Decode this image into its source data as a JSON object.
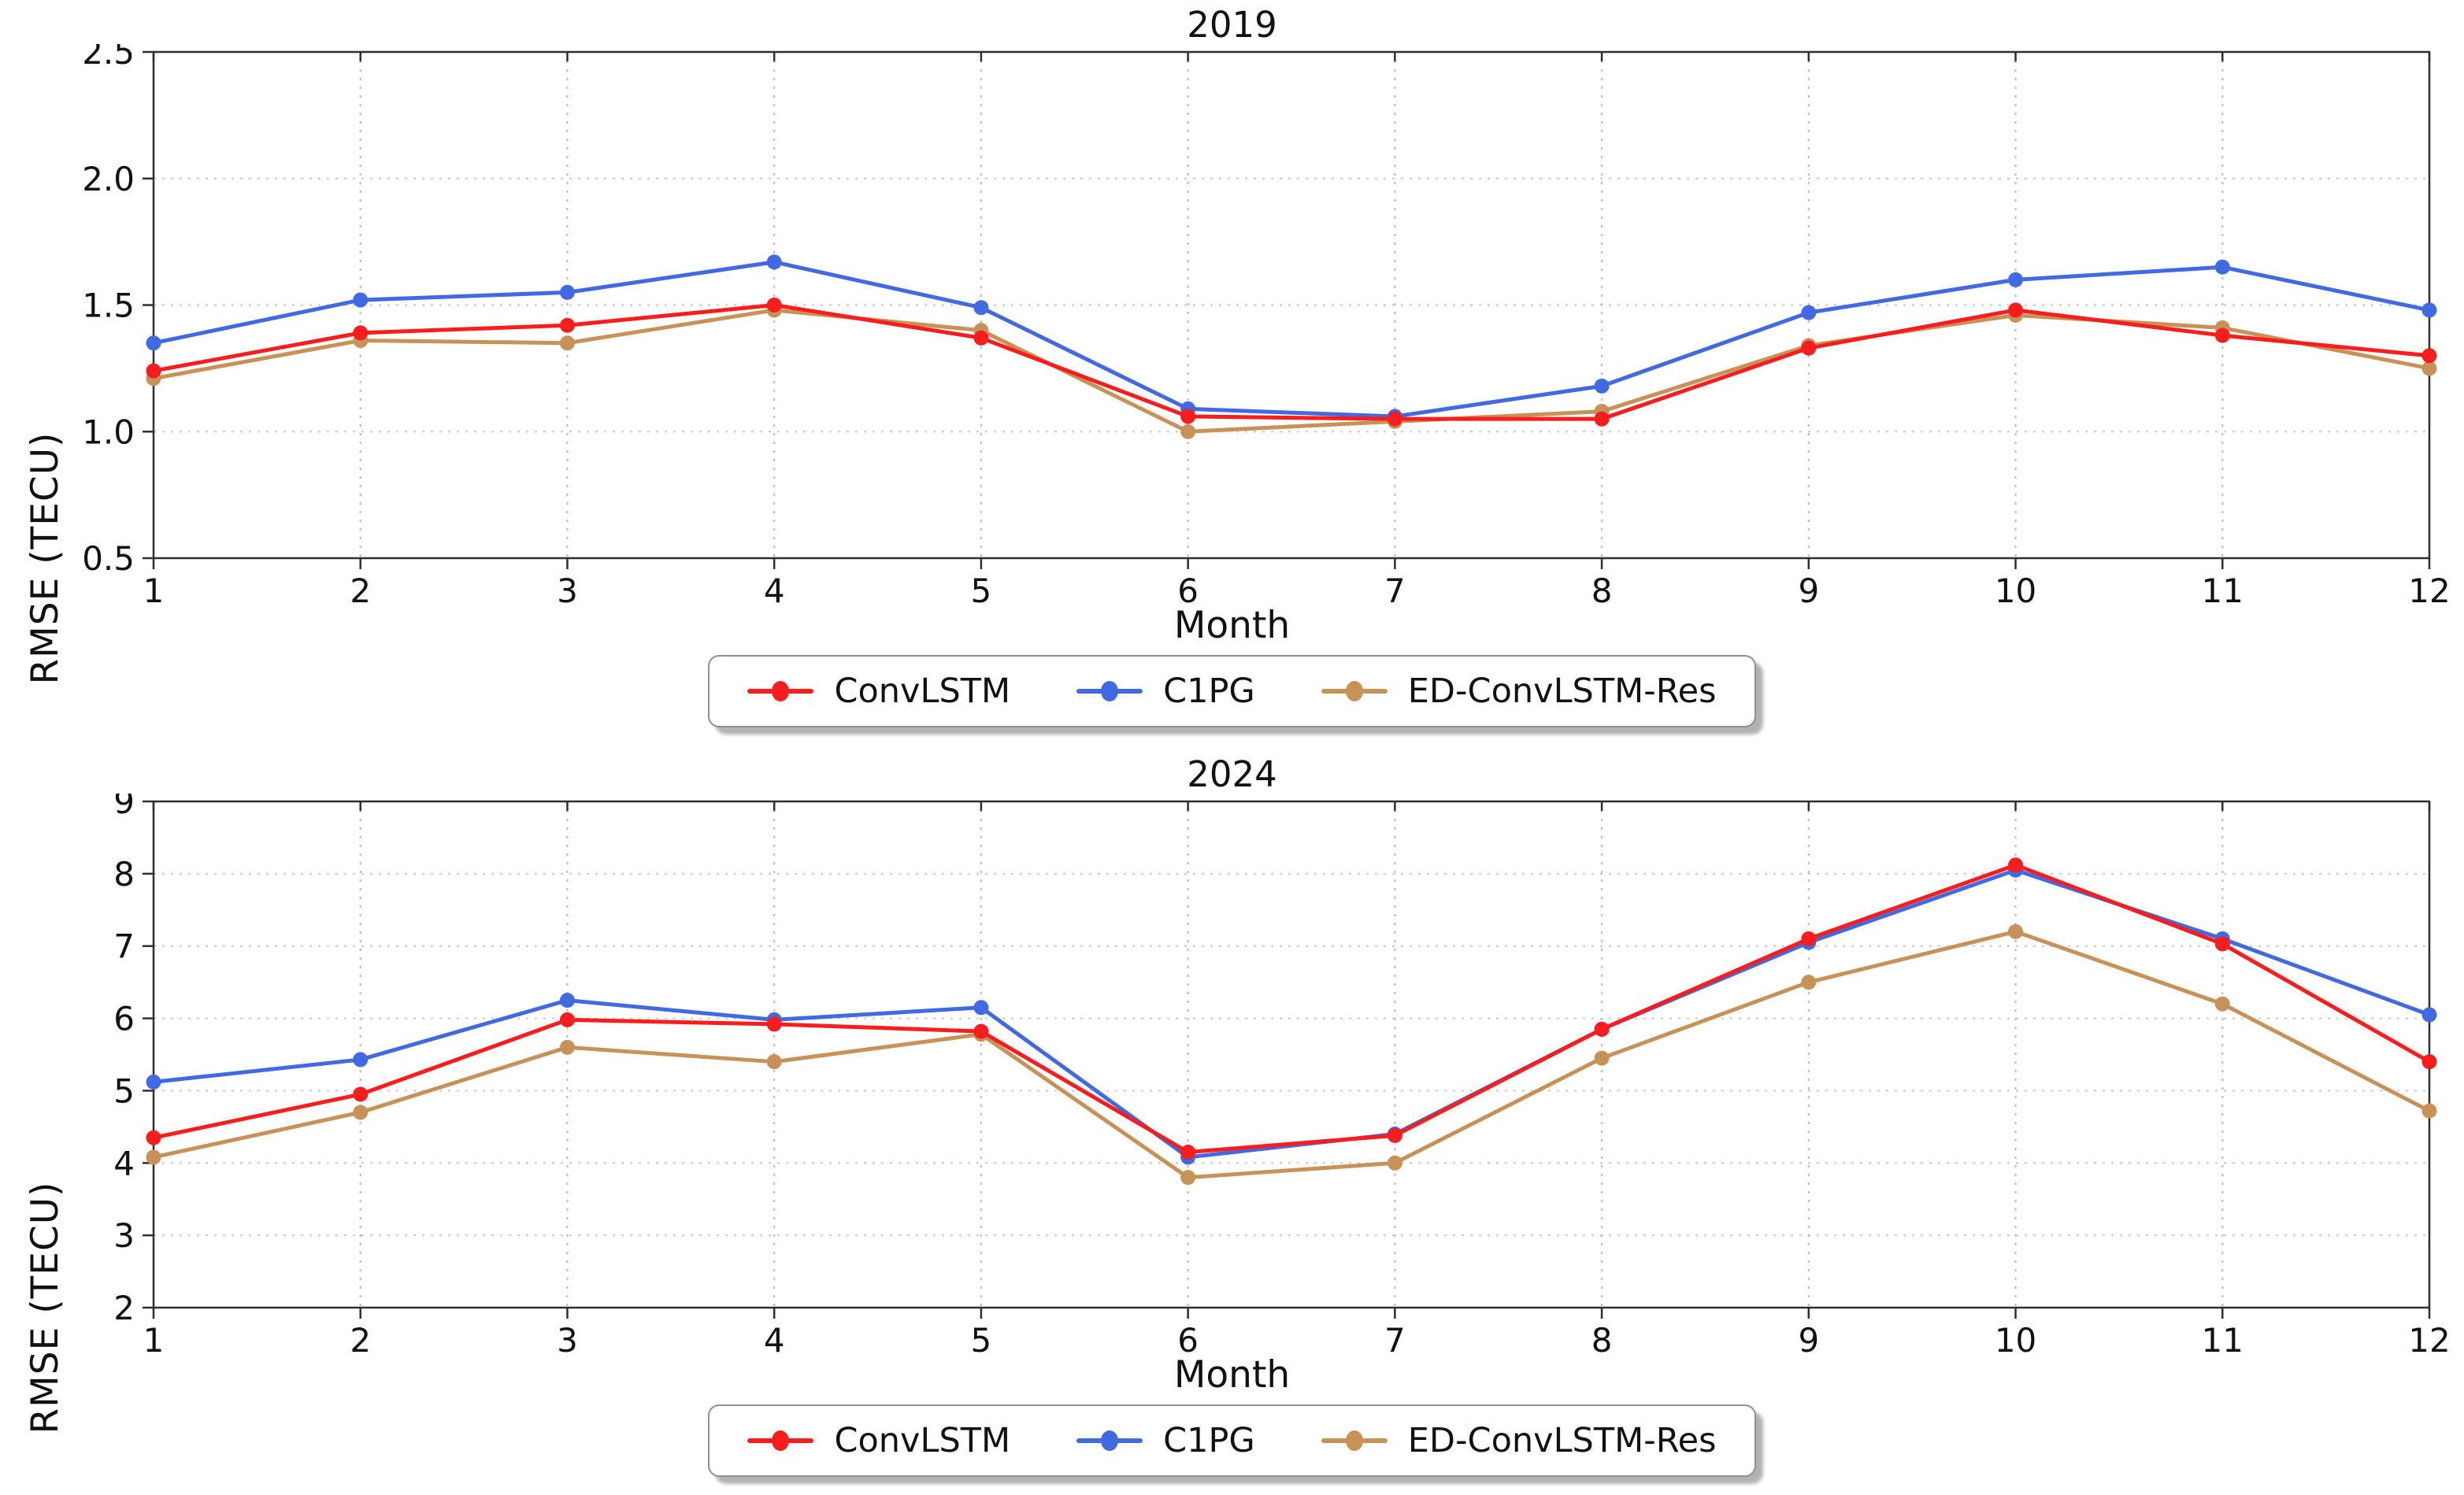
{
  "figure": {
    "background": "#ffffff",
    "text_color": "#111111",
    "grid_color_horizontal": "#cccccc",
    "grid_color_vertical": "#bdbdbd",
    "spine_color": "#2f2f2f"
  },
  "chart_data": [
    {
      "type": "line",
      "title": "2019",
      "xlabel": "Month",
      "ylabel": "RMSE (TECU)",
      "x": [
        1,
        2,
        3,
        4,
        5,
        6,
        7,
        8,
        9,
        10,
        11,
        12
      ],
      "xlim": [
        1,
        12
      ],
      "ylim": [
        0.5,
        2.5
      ],
      "xticks": [
        "1",
        "2",
        "3",
        "4",
        "5",
        "6",
        "7",
        "8",
        "9",
        "10",
        "11",
        "12"
      ],
      "yticks": [
        "0.5",
        "1.0",
        "1.5",
        "2.0",
        "2.5"
      ],
      "grid": true,
      "legend_position": "below",
      "series": [
        {
          "name": "ConvLSTM",
          "color": "#f91d1d",
          "values": [
            1.24,
            1.39,
            1.42,
            1.5,
            1.37,
            1.06,
            1.05,
            1.05,
            1.33,
            1.48,
            1.38,
            1.3
          ]
        },
        {
          "name": "C1PG",
          "color": "#4169e1",
          "values": [
            1.35,
            1.52,
            1.55,
            1.67,
            1.49,
            1.09,
            1.06,
            1.18,
            1.47,
            1.6,
            1.65,
            1.48
          ]
        },
        {
          "name": "ED-ConvLSTM-Res",
          "color": "#c79257",
          "values": [
            1.21,
            1.36,
            1.35,
            1.48,
            1.4,
            1.0,
            1.04,
            1.08,
            1.34,
            1.46,
            1.41,
            1.25
          ]
        }
      ]
    },
    {
      "type": "line",
      "title": "2024",
      "xlabel": "Month",
      "ylabel": "RMSE (TECU)",
      "x": [
        1,
        2,
        3,
        4,
        5,
        6,
        7,
        8,
        9,
        10,
        11,
        12
      ],
      "xlim": [
        1,
        12
      ],
      "ylim": [
        2,
        9
      ],
      "xticks": [
        "1",
        "2",
        "3",
        "4",
        "5",
        "6",
        "7",
        "8",
        "9",
        "10",
        "11",
        "12"
      ],
      "yticks": [
        "2",
        "3",
        "4",
        "5",
        "6",
        "7",
        "8",
        "9"
      ],
      "grid": true,
      "legend_position": "below",
      "series": [
        {
          "name": "ConvLSTM",
          "color": "#f91d1d",
          "values": [
            4.35,
            4.95,
            5.98,
            5.92,
            5.82,
            4.15,
            4.38,
            5.85,
            7.1,
            8.12,
            7.03,
            5.4
          ]
        },
        {
          "name": "C1PG",
          "color": "#4169e1",
          "values": [
            5.12,
            5.43,
            6.25,
            5.98,
            6.15,
            4.08,
            4.4,
            5.85,
            7.05,
            8.05,
            7.1,
            6.05
          ]
        },
        {
          "name": "ED-ConvLSTM-Res",
          "color": "#c79257",
          "values": [
            4.08,
            4.7,
            5.6,
            5.4,
            5.78,
            3.8,
            4.0,
            5.45,
            6.5,
            7.2,
            6.2,
            4.72
          ]
        }
      ]
    }
  ]
}
